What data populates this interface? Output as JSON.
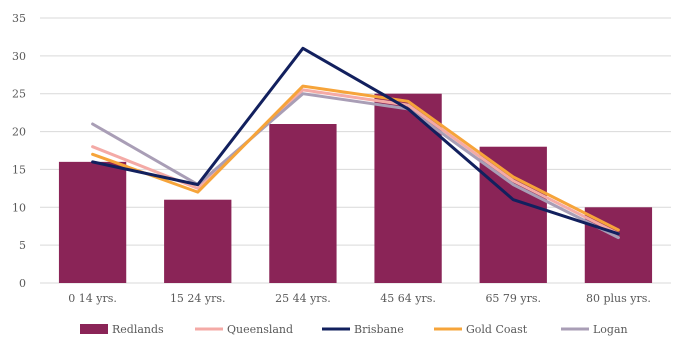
{
  "chart_data": {
    "type": "bar",
    "title": "",
    "xlabel": "",
    "ylabel": "",
    "categories": [
      "0 14 yrs.",
      "15 24 yrs.",
      "25 44 yrs.",
      "45 64 yrs.",
      "65 79 yrs.",
      "80 plus yrs."
    ],
    "ylim": [
      0,
      35
    ],
    "y_ticks": [
      "0",
      "5",
      "10",
      "15",
      "20",
      "25",
      "30",
      "35"
    ],
    "grid": "horizontal",
    "legend_position": "bottom",
    "series": [
      {
        "name": "Redlands",
        "kind": "bar",
        "color": "#8a2457",
        "values": [
          16,
          11,
          21,
          25,
          18,
          10
        ]
      },
      {
        "name": "Queensland",
        "kind": "line",
        "color": "#f4aaa6",
        "values": [
          18,
          12.5,
          25.5,
          23.5,
          13.5,
          6.5
        ]
      },
      {
        "name": "Brisbane",
        "kind": "line",
        "color": "#12205e",
        "values": [
          16,
          13,
          31,
          23,
          11,
          6.5
        ]
      },
      {
        "name": "Gold Coast",
        "kind": "line",
        "color": "#f6a43a",
        "values": [
          17,
          12,
          26,
          24,
          14,
          7
        ]
      },
      {
        "name": "Logan",
        "kind": "line",
        "color": "#a99eb6",
        "values": [
          21,
          13,
          25,
          23,
          13,
          6
        ]
      }
    ]
  }
}
